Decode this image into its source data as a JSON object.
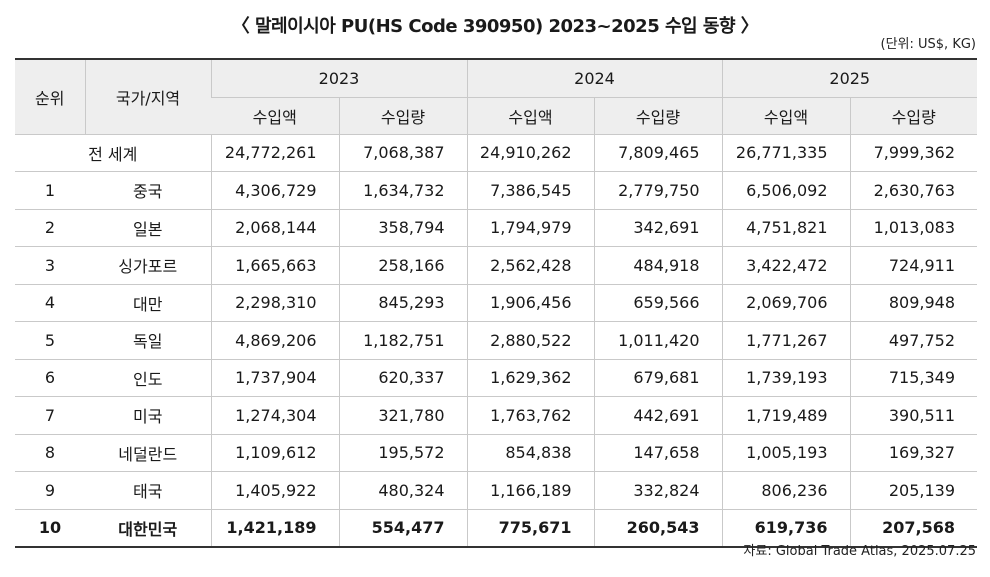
{
  "title": "〈 말레이시아 PU(HS Code 390950) 2023~2025 수입 동향 〉",
  "unit": "(단위: US$, KG)",
  "headers": {
    "rank": "순위",
    "country": "국가/지역",
    "years": [
      "2023",
      "2024",
      "2025"
    ],
    "amount": "수입액",
    "volume": "수입량"
  },
  "world": {
    "label": "전 세계",
    "values": [
      "24,772,261",
      "7,068,387",
      "24,910,262",
      "7,809,465",
      "26,771,335",
      "7,999,362"
    ]
  },
  "rows": [
    {
      "rank": "1",
      "country": "중국",
      "values": [
        "4,306,729",
        "1,634,732",
        "7,386,545",
        "2,779,750",
        "6,506,092",
        "2,630,763"
      ]
    },
    {
      "rank": "2",
      "country": "일본",
      "values": [
        "2,068,144",
        "358,794",
        "1,794,979",
        "342,691",
        "4,751,821",
        "1,013,083"
      ]
    },
    {
      "rank": "3",
      "country": "싱가포르",
      "values": [
        "1,665,663",
        "258,166",
        "2,562,428",
        "484,918",
        "3,422,472",
        "724,911"
      ]
    },
    {
      "rank": "4",
      "country": "대만",
      "values": [
        "2,298,310",
        "845,293",
        "1,906,456",
        "659,566",
        "2,069,706",
        "809,948"
      ]
    },
    {
      "rank": "5",
      "country": "독일",
      "values": [
        "4,869,206",
        "1,182,751",
        "2,880,522",
        "1,011,420",
        "1,771,267",
        "497,752"
      ]
    },
    {
      "rank": "6",
      "country": "인도",
      "values": [
        "1,737,904",
        "620,337",
        "1,629,362",
        "679,681",
        "1,739,193",
        "715,349"
      ]
    },
    {
      "rank": "7",
      "country": "미국",
      "values": [
        "1,274,304",
        "321,780",
        "1,763,762",
        "442,691",
        "1,719,489",
        "390,511"
      ]
    },
    {
      "rank": "8",
      "country": "네덜란드",
      "values": [
        "1,109,612",
        "195,572",
        "854,838",
        "147,658",
        "1,005,193",
        "169,327"
      ]
    },
    {
      "rank": "9",
      "country": "태국",
      "values": [
        "1,405,922",
        "480,324",
        "1,166,189",
        "332,824",
        "806,236",
        "205,139"
      ]
    },
    {
      "rank": "10",
      "country": "대한민국",
      "values": [
        "1,421,189",
        "554,477",
        "775,671",
        "260,543",
        "619,736",
        "207,568"
      ]
    }
  ],
  "source": "자료: Global Trade Atlas, 2025.07.25"
}
